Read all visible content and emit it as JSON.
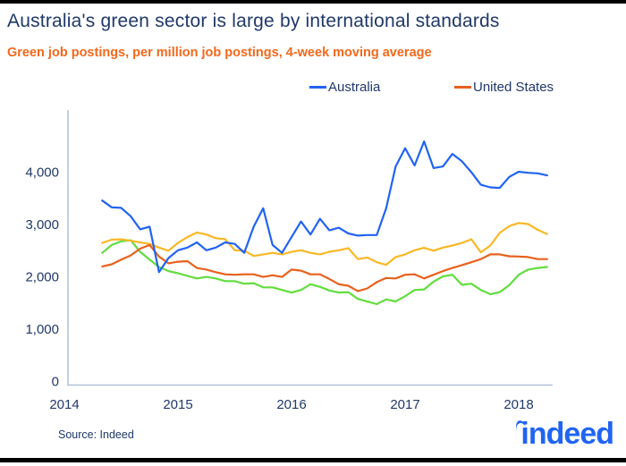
{
  "header": {
    "title": "Australia's green sector is large by international standards",
    "subtitle": "Green job postings, per million job postings, 4-week moving average"
  },
  "footer": {
    "source": "Source: Indeed",
    "logo_text": "indeed"
  },
  "colors": {
    "title_text": "#20386b",
    "subtitle_text": "#f2681c",
    "axis_line": "#b3c4da",
    "tick_text": "#20386b",
    "logo": "#2164f3",
    "accent_bars": "#000000",
    "background": "#ffffff"
  },
  "chart_data": {
    "type": "line",
    "title": "Australia's green sector is large by international standards",
    "subtitle": "Green job postings, per million job postings, 4-week moving average",
    "legend_position": "top",
    "grid": false,
    "x_start": "2014-05",
    "x_interval": "monthly",
    "x_axis": {
      "tick_labels": [
        "2014",
        "2015",
        "2016",
        "2017",
        "2018"
      ],
      "tick_values": [
        2014,
        2015,
        2016,
        2017,
        2018
      ],
      "min": 2014,
      "max": 2018.3
    },
    "y_axis": {
      "tick_labels": [
        "0",
        "1,000",
        "2,000",
        "3,000",
        "4,000"
      ],
      "tick_values": [
        0,
        1000,
        2000,
        3000,
        4000
      ],
      "min": 0,
      "max": 4700
    },
    "series": [
      {
        "name": "Australia",
        "color": "#2163f2",
        "in_legend": true,
        "values": [
          3450,
          3320,
          3310,
          3150,
          2900,
          2950,
          2080,
          2350,
          2500,
          2550,
          2650,
          2500,
          2550,
          2650,
          2620,
          2450,
          2950,
          3300,
          2600,
          2450,
          2750,
          3050,
          2800,
          3100,
          2880,
          2930,
          2820,
          2780,
          2790,
          2790,
          3300,
          4100,
          4450,
          4120,
          4580,
          4070,
          4100,
          4340,
          4200,
          3990,
          3750,
          3700,
          3690,
          3900,
          4000,
          3980,
          3970,
          3930
        ]
      },
      {
        "name": "United States",
        "color": "#e8611c",
        "in_legend": true,
        "values": [
          2190,
          2230,
          2320,
          2400,
          2530,
          2600,
          2380,
          2250,
          2280,
          2290,
          2160,
          2130,
          2080,
          2040,
          2030,
          2040,
          2040,
          1990,
          2020,
          1990,
          2130,
          2110,
          2040,
          2040,
          1950,
          1850,
          1820,
          1720,
          1770,
          1890,
          1970,
          1960,
          2030,
          2040,
          1960,
          2030,
          2100,
          2160,
          2215,
          2270,
          2330,
          2420,
          2420,
          2385,
          2380,
          2370,
          2330,
          2330
        ]
      },
      {
        "name": "",
        "color": "#f9b825",
        "in_legend": false,
        "values": [
          2640,
          2700,
          2710,
          2680,
          2650,
          2620,
          2550,
          2490,
          2640,
          2750,
          2840,
          2800,
          2730,
          2710,
          2500,
          2490,
          2390,
          2420,
          2450,
          2420,
          2470,
          2500,
          2450,
          2420,
          2470,
          2500,
          2540,
          2330,
          2360,
          2270,
          2220,
          2370,
          2420,
          2500,
          2545,
          2490,
          2550,
          2590,
          2640,
          2710,
          2460,
          2590,
          2830,
          2960,
          3020,
          3000,
          2890,
          2810
        ]
      },
      {
        "name": "",
        "color": "#62dd3e",
        "in_legend": false,
        "values": [
          2450,
          2600,
          2670,
          2690,
          2470,
          2320,
          2180,
          2100,
          2060,
          2010,
          1960,
          1990,
          1960,
          1910,
          1910,
          1860,
          1870,
          1790,
          1790,
          1740,
          1690,
          1740,
          1850,
          1800,
          1730,
          1690,
          1700,
          1570,
          1520,
          1470,
          1560,
          1520,
          1620,
          1740,
          1750,
          1900,
          2000,
          2030,
          1840,
          1860,
          1740,
          1660,
          1700,
          1830,
          2030,
          2130,
          2160,
          2180
        ]
      }
    ]
  }
}
